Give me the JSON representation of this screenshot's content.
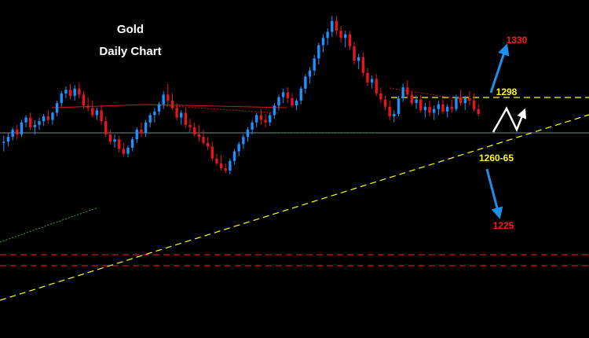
{
  "chart_data": {
    "type": "candlestick",
    "title": "Gold",
    "subtitle": "Daily Chart",
    "instrument": "Gold",
    "timeframe": "Daily",
    "grid": false,
    "colors": {
      "background": "#000000",
      "bull": "#1e90ff",
      "bear": "#e8141e",
      "level_line": "#ffff00",
      "support_line": "#ff1a1a",
      "arrow": "#1e8fe6",
      "scenario_path": "#ffffff",
      "pivot_line": "#7a8a8a"
    },
    "y_range": [
      1180,
      1365
    ],
    "candles": [
      [
        1257,
        1263,
        1250,
        1258
      ],
      [
        1258,
        1265,
        1254,
        1262
      ],
      [
        1262,
        1270,
        1259,
        1268
      ],
      [
        1268,
        1272,
        1260,
        1264
      ],
      [
        1264,
        1276,
        1262,
        1274
      ],
      [
        1274,
        1280,
        1270,
        1278
      ],
      [
        1278,
        1282,
        1268,
        1270
      ],
      [
        1270,
        1276,
        1264,
        1272
      ],
      [
        1272,
        1278,
        1268,
        1275
      ],
      [
        1275,
        1281,
        1271,
        1279
      ],
      [
        1279,
        1284,
        1273,
        1276
      ],
      [
        1276,
        1283,
        1272,
        1282
      ],
      [
        1282,
        1292,
        1279,
        1290
      ],
      [
        1290,
        1300,
        1287,
        1298
      ],
      [
        1298,
        1304,
        1294,
        1301
      ],
      [
        1301,
        1306,
        1293,
        1296
      ],
      [
        1296,
        1305,
        1292,
        1302
      ],
      [
        1302,
        1307,
        1294,
        1297
      ],
      [
        1297,
        1300,
        1285,
        1288
      ],
      [
        1288,
        1295,
        1283,
        1286
      ],
      [
        1286,
        1292,
        1278,
        1280
      ],
      [
        1280,
        1286,
        1276,
        1284
      ],
      [
        1284,
        1288,
        1272,
        1275
      ],
      [
        1275,
        1279,
        1262,
        1264
      ],
      [
        1264,
        1268,
        1256,
        1258
      ],
      [
        1258,
        1264,
        1253,
        1260
      ],
      [
        1260,
        1263,
        1249,
        1252
      ],
      [
        1252,
        1257,
        1246,
        1248
      ],
      [
        1248,
        1255,
        1245,
        1253
      ],
      [
        1253,
        1262,
        1250,
        1260
      ],
      [
        1260,
        1270,
        1257,
        1268
      ],
      [
        1268,
        1274,
        1262,
        1265
      ],
      [
        1265,
        1276,
        1262,
        1274
      ],
      [
        1274,
        1282,
        1270,
        1280
      ],
      [
        1280,
        1286,
        1274,
        1283
      ],
      [
        1283,
        1291,
        1280,
        1289
      ],
      [
        1289,
        1300,
        1285,
        1297
      ],
      [
        1297,
        1306,
        1288,
        1292
      ],
      [
        1292,
        1298,
        1284,
        1286
      ],
      [
        1286,
        1290,
        1276,
        1278
      ],
      [
        1278,
        1284,
        1272,
        1282
      ],
      [
        1282,
        1286,
        1270,
        1272
      ],
      [
        1272,
        1277,
        1266,
        1270
      ],
      [
        1270,
        1274,
        1262,
        1264
      ],
      [
        1264,
        1272,
        1258,
        1262
      ],
      [
        1262,
        1268,
        1255,
        1257
      ],
      [
        1257,
        1262,
        1251,
        1254
      ],
      [
        1254,
        1258,
        1242,
        1244
      ],
      [
        1244,
        1248,
        1238,
        1240
      ],
      [
        1240,
        1247,
        1234,
        1236
      ],
      [
        1236,
        1240,
        1232,
        1234
      ],
      [
        1234,
        1244,
        1231,
        1242
      ],
      [
        1242,
        1252,
        1239,
        1250
      ],
      [
        1250,
        1258,
        1246,
        1256
      ],
      [
        1256,
        1264,
        1252,
        1262
      ],
      [
        1262,
        1270,
        1258,
        1268
      ],
      [
        1268,
        1276,
        1264,
        1274
      ],
      [
        1274,
        1282,
        1270,
        1280
      ],
      [
        1280,
        1285,
        1272,
        1276
      ],
      [
        1276,
        1281,
        1270,
        1274
      ],
      [
        1274,
        1282,
        1271,
        1280
      ],
      [
        1280,
        1290,
        1277,
        1288
      ],
      [
        1288,
        1297,
        1284,
        1295
      ],
      [
        1295,
        1302,
        1290,
        1299
      ],
      [
        1299,
        1303,
        1290,
        1294
      ],
      [
        1294,
        1298,
        1286,
        1288
      ],
      [
        1288,
        1294,
        1284,
        1292
      ],
      [
        1292,
        1304,
        1289,
        1302
      ],
      [
        1302,
        1314,
        1298,
        1312
      ],
      [
        1312,
        1320,
        1306,
        1317
      ],
      [
        1317,
        1330,
        1313,
        1327
      ],
      [
        1327,
        1340,
        1322,
        1338
      ],
      [
        1338,
        1347,
        1332,
        1344
      ],
      [
        1344,
        1352,
        1338,
        1349
      ],
      [
        1349,
        1362,
        1345,
        1358
      ],
      [
        1358,
        1362,
        1346,
        1350
      ],
      [
        1350,
        1354,
        1340,
        1344
      ],
      [
        1344,
        1350,
        1336,
        1347
      ],
      [
        1347,
        1350,
        1334,
        1337
      ],
      [
        1337,
        1341,
        1322,
        1325
      ],
      [
        1325,
        1331,
        1318,
        1328
      ],
      [
        1328,
        1332,
        1312,
        1315
      ],
      [
        1315,
        1319,
        1304,
        1307
      ],
      [
        1307,
        1313,
        1302,
        1310
      ],
      [
        1310,
        1314,
        1296,
        1298
      ],
      [
        1298,
        1303,
        1290,
        1293
      ],
      [
        1293,
        1296,
        1284,
        1287
      ],
      [
        1287,
        1292,
        1276,
        1279
      ],
      [
        1279,
        1284,
        1274,
        1281
      ],
      [
        1281,
        1296,
        1279,
        1294
      ],
      [
        1294,
        1306,
        1291,
        1303
      ],
      [
        1303,
        1309,
        1294,
        1297
      ],
      [
        1297,
        1300,
        1288,
        1290
      ],
      [
        1290,
        1296,
        1285,
        1293
      ],
      [
        1293,
        1297,
        1282,
        1284
      ],
      [
        1284,
        1290,
        1278,
        1287
      ],
      [
        1287,
        1292,
        1279,
        1282
      ],
      [
        1282,
        1288,
        1276,
        1285
      ],
      [
        1285,
        1292,
        1280,
        1289
      ],
      [
        1289,
        1293,
        1281,
        1283
      ],
      [
        1283,
        1289,
        1278,
        1287
      ],
      [
        1287,
        1293,
        1282,
        1285
      ],
      [
        1285,
        1297,
        1283,
        1295
      ],
      [
        1295,
        1301,
        1288,
        1290
      ],
      [
        1290,
        1296,
        1284,
        1294
      ],
      [
        1294,
        1300,
        1288,
        1292
      ],
      [
        1292,
        1298,
        1283,
        1285
      ],
      [
        1285,
        1289,
        1279,
        1281
      ]
    ],
    "horizontal_levels": [
      {
        "price": 1298,
        "style": "dashed",
        "color": "#ffff00"
      },
      {
        "price": 1288,
        "style": "solid",
        "color": "#7a8a8a"
      },
      {
        "price": 1224,
        "style": "dashed",
        "color": "#ff1a1a"
      },
      {
        "price": 1216,
        "style": "dashed",
        "color": "#ff1a1a"
      }
    ],
    "annotations": [
      {
        "text": "1330",
        "color": "#ff1a1a",
        "direction": "up"
      },
      {
        "text": "1298",
        "color": "#ffff00"
      },
      {
        "text": "1260-65",
        "color": "#ffff00",
        "direction": "down"
      },
      {
        "text": "1225",
        "color": "#ff1a1a"
      }
    ]
  }
}
